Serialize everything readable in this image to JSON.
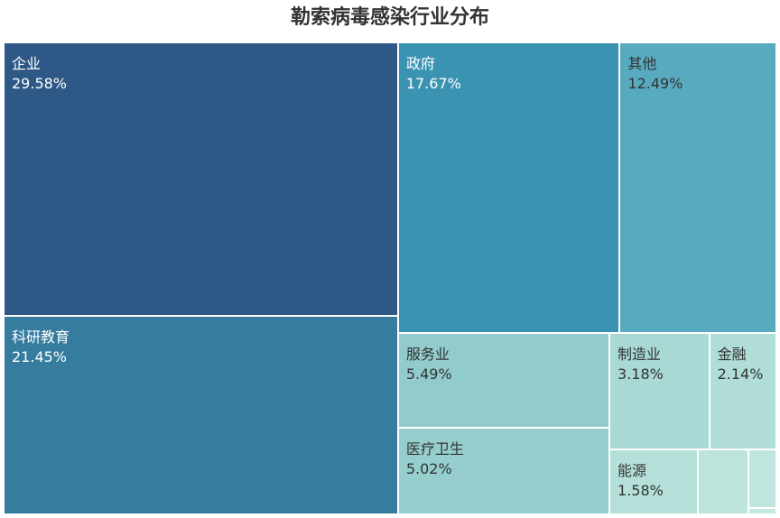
{
  "chart_data": {
    "type": "treemap",
    "title": "勒索病毒感染行业分布",
    "items": [
      {
        "name": "企业",
        "label": "29.58%",
        "value": 29.58,
        "color": "#2e5885",
        "text_color": "#ffffff"
      },
      {
        "name": "科研教育",
        "label": "21.45%",
        "value": 21.45,
        "color": "#357c9f",
        "text_color": "#ffffff"
      },
      {
        "name": "政府",
        "label": "17.67%",
        "value": 17.67,
        "color": "#3b93b2",
        "text_color": "#ffffff"
      },
      {
        "name": "其他",
        "label": "12.49%",
        "value": 12.49,
        "color": "#58aabf",
        "text_color": "#333333"
      },
      {
        "name": "服务业",
        "label": "5.49%",
        "value": 5.49,
        "color": "#92cbcc",
        "text_color": "#333333"
      },
      {
        "name": "医疗卫生",
        "label": "5.02%",
        "value": 5.02,
        "color": "#96cece",
        "text_color": "#333333"
      },
      {
        "name": "制造业",
        "label": "3.18%",
        "value": 3.18,
        "color": "#a8d9d4",
        "text_color": "#333333"
      },
      {
        "name": "金融",
        "label": "2.14%",
        "value": 2.14,
        "color": "#b0ddd7",
        "text_color": "#333333"
      },
      {
        "name": "能源",
        "label": "1.58%",
        "value": 1.58,
        "color": "#b5e0da",
        "text_color": "#333333"
      },
      {
        "name": "",
        "label": "",
        "value": 0.9,
        "color": "#bce3dc",
        "text_color": "#333333"
      },
      {
        "name": "",
        "label": "",
        "value": 0.45,
        "color": "#c0e5de",
        "text_color": "#333333"
      },
      {
        "name": "",
        "label": "",
        "value": 0.05,
        "color": "#c4e7e0",
        "text_color": "#333333"
      }
    ]
  }
}
